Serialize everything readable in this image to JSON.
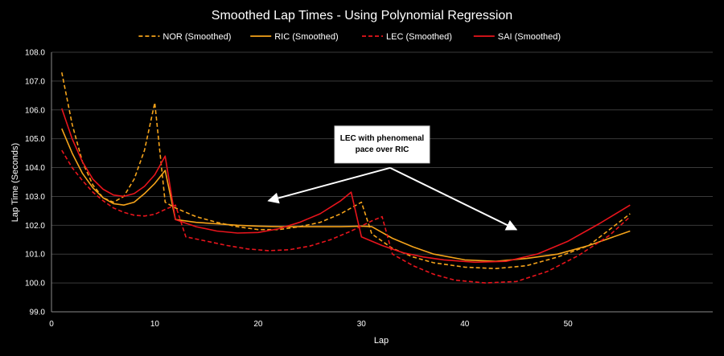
{
  "chart_data": {
    "type": "line",
    "title": "Smoothed Lap Times - Using Polynomial Regression",
    "xlabel": "Lap",
    "ylabel": "Lap Time (Seconds)",
    "xlim": [
      0,
      64
    ],
    "ylim": [
      99.0,
      108.0
    ],
    "xticks": [
      0,
      10,
      20,
      30,
      40,
      50
    ],
    "yticks": [
      99.0,
      100.0,
      101.0,
      102.0,
      103.0,
      104.0,
      105.0,
      106.0,
      107.0,
      108.0
    ],
    "grid": true,
    "legend_position": "top",
    "series": [
      {
        "name": "NOR (Smoothed)",
        "color": "#f5a31a",
        "dash": "dashed",
        "x": [
          1,
          2,
          3,
          4,
          5,
          6,
          7,
          8,
          9,
          10,
          11,
          12,
          14,
          16,
          18,
          20,
          22,
          24,
          26,
          28,
          30,
          31,
          33,
          35,
          37,
          40,
          43,
          46,
          49,
          52,
          56
        ],
        "y": [
          107.3,
          105.5,
          104.2,
          103.4,
          102.95,
          102.8,
          103.0,
          103.6,
          104.6,
          106.25,
          102.8,
          102.6,
          102.3,
          102.1,
          101.95,
          101.85,
          101.85,
          101.95,
          102.1,
          102.4,
          102.8,
          101.7,
          101.2,
          100.9,
          100.7,
          100.55,
          100.5,
          100.6,
          100.9,
          101.3,
          102.4
        ]
      },
      {
        "name": "RIC (Smoothed)",
        "color": "#f5a31a",
        "dash": "solid",
        "x": [
          1,
          2,
          3,
          4,
          5,
          6,
          7,
          8,
          9,
          10,
          11,
          12,
          14,
          16,
          18,
          20,
          22,
          24,
          26,
          28,
          30,
          31,
          33,
          35,
          37,
          40,
          43,
          46,
          49,
          52,
          56
        ],
        "y": [
          105.35,
          104.5,
          103.8,
          103.3,
          102.95,
          102.75,
          102.7,
          102.8,
          103.1,
          103.45,
          103.9,
          102.2,
          102.1,
          102.05,
          102.0,
          101.97,
          101.95,
          101.95,
          101.95,
          101.95,
          101.97,
          101.95,
          101.55,
          101.25,
          101.0,
          100.8,
          100.75,
          100.85,
          101.0,
          101.3,
          101.8
        ]
      },
      {
        "name": "LEC (Smoothed)",
        "color": "#e8141c",
        "dash": "dashed",
        "x": [
          1,
          2,
          3,
          4,
          5,
          6,
          7,
          8,
          9,
          10,
          11,
          12,
          13,
          15,
          17,
          19,
          21,
          23,
          25,
          27,
          29,
          31,
          32,
          33,
          35,
          37,
          39,
          42,
          45,
          48,
          51,
          54,
          56
        ],
        "y": [
          104.6,
          104.0,
          103.55,
          103.15,
          102.85,
          102.6,
          102.45,
          102.35,
          102.32,
          102.38,
          102.55,
          102.7,
          101.6,
          101.45,
          101.3,
          101.18,
          101.12,
          101.15,
          101.28,
          101.5,
          101.8,
          102.15,
          102.3,
          101.0,
          100.6,
          100.3,
          100.1,
          100.0,
          100.05,
          100.4,
          100.95,
          101.65,
          102.3
        ]
      },
      {
        "name": "SAI (Smoothed)",
        "color": "#e8141c",
        "dash": "solid",
        "x": [
          1,
          2,
          3,
          4,
          5,
          6,
          7,
          8,
          9,
          10,
          11,
          12,
          14,
          16,
          18,
          20,
          22,
          24,
          26,
          28,
          29,
          30,
          32,
          34,
          36,
          38,
          41,
          44,
          47,
          50,
          53,
          56
        ],
        "y": [
          106.05,
          105.0,
          104.2,
          103.6,
          103.25,
          103.05,
          103.0,
          103.1,
          103.35,
          103.75,
          104.4,
          102.2,
          101.95,
          101.8,
          101.73,
          101.75,
          101.88,
          102.1,
          102.4,
          102.85,
          103.15,
          101.6,
          101.3,
          101.05,
          100.9,
          100.8,
          100.72,
          100.75,
          101.0,
          101.45,
          102.05,
          102.7
        ]
      }
    ],
    "annotations": [
      {
        "text_lines": [
          "LEC with phenomenal",
          "pace over RIC"
        ],
        "origin_data": [
          32,
          104.8
        ],
        "arrows_to_data": [
          [
            21,
            102.85
          ],
          [
            45,
            101.85
          ]
        ]
      }
    ]
  }
}
